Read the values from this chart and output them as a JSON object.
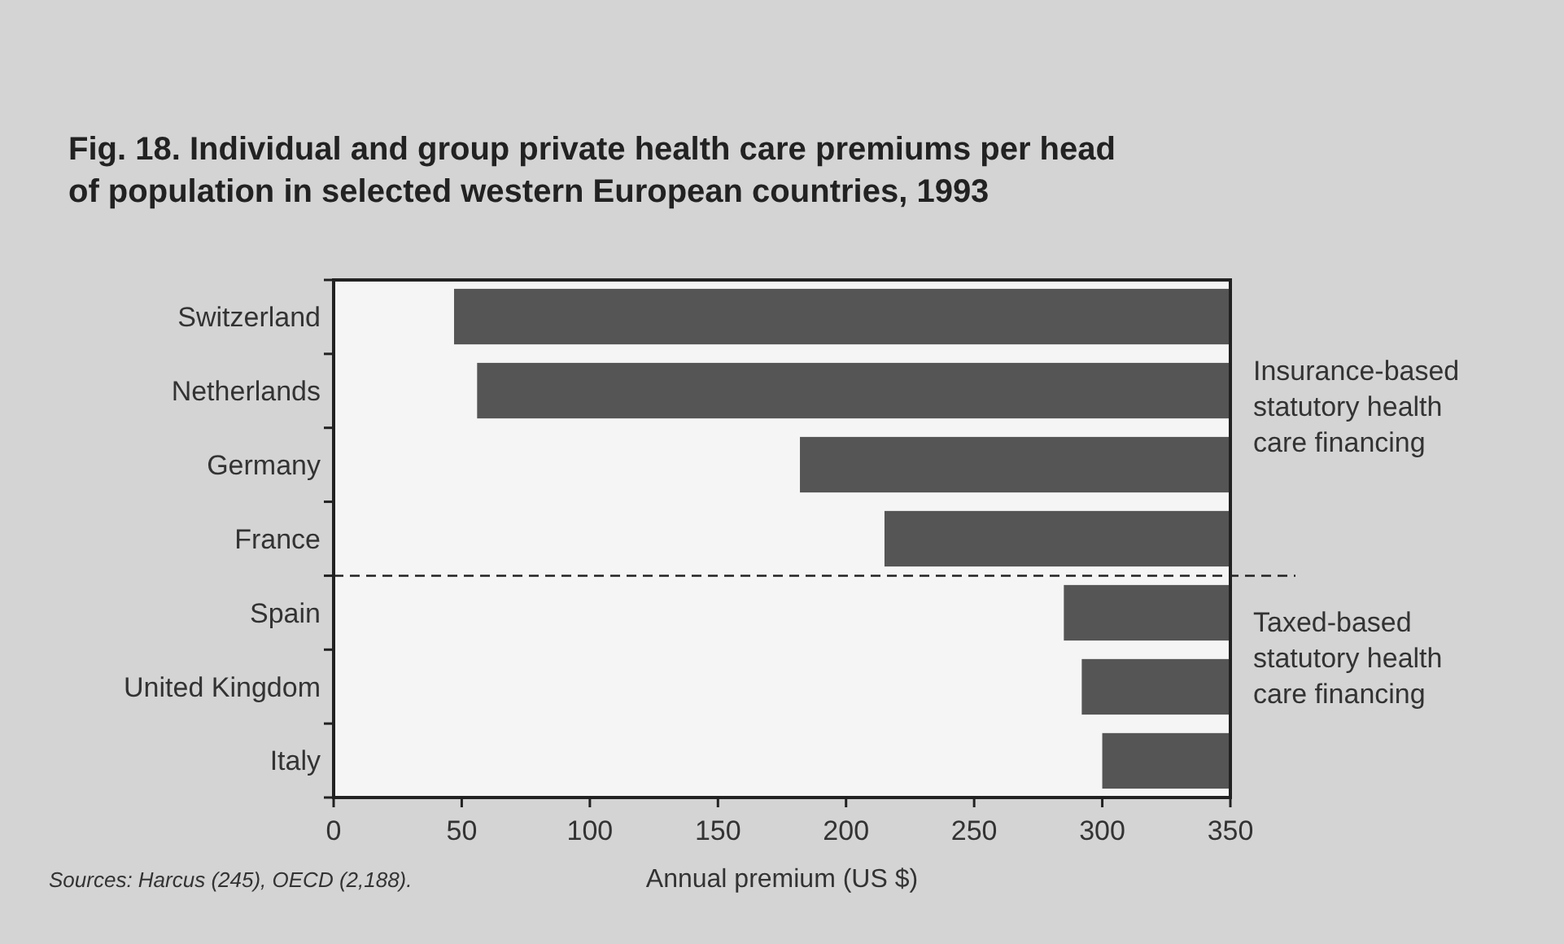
{
  "chart_data": {
    "type": "bar",
    "orientation": "horizontal",
    "title": "Fig. 18. Individual and group private health care premiums per head of population in selected western European countries, 1993",
    "xlabel": "Annual premium (US $)",
    "categories": [
      "Switzerland",
      "Netherlands",
      "Germany",
      "France",
      "Spain",
      "United Kingdom",
      "Italy"
    ],
    "base": [
      47,
      56,
      182,
      215,
      285,
      292,
      300
    ],
    "values": [
      303,
      294,
      168,
      135,
      65,
      58,
      50
    ],
    "color": "#555555",
    "xlim": [
      0,
      350
    ],
    "xticks": [
      0,
      50,
      100,
      150,
      200,
      250,
      300,
      350
    ],
    "annotations": [
      "Insurance-based statutory health care financing",
      "Taxed-based statutory health care financing",
      "Sources: Harcus (245), OECD (2,188)."
    ],
    "grid": false
  }
}
